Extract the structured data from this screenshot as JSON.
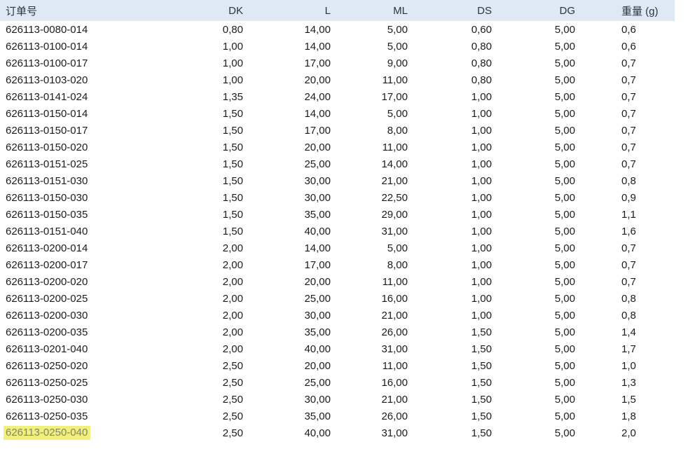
{
  "table": {
    "columns": [
      {
        "key": "order",
        "label": "订单号",
        "align": "left"
      },
      {
        "key": "dk",
        "label": "DK",
        "align": "right"
      },
      {
        "key": "l",
        "label": "L",
        "align": "right"
      },
      {
        "key": "ml",
        "label": "ML",
        "align": "right"
      },
      {
        "key": "ds",
        "label": "DS",
        "align": "right"
      },
      {
        "key": "dg",
        "label": "DG",
        "align": "right"
      },
      {
        "key": "weight",
        "label": "重量 (g)",
        "align": "left"
      }
    ],
    "rows": [
      {
        "order": "626113-0080-014",
        "dk": "0,80",
        "l": "14,00",
        "ml": "5,00",
        "ds": "0,60",
        "dg": "5,00",
        "weight": "0,6"
      },
      {
        "order": "626113-0100-014",
        "dk": "1,00",
        "l": "14,00",
        "ml": "5,00",
        "ds": "0,80",
        "dg": "5,00",
        "weight": "0,6"
      },
      {
        "order": "626113-0100-017",
        "dk": "1,00",
        "l": "17,00",
        "ml": "9,00",
        "ds": "0,80",
        "dg": "5,00",
        "weight": "0,7"
      },
      {
        "order": "626113-0103-020",
        "dk": "1,00",
        "l": "20,00",
        "ml": "11,00",
        "ds": "0,80",
        "dg": "5,00",
        "weight": "0,7"
      },
      {
        "order": "626113-0141-024",
        "dk": "1,35",
        "l": "24,00",
        "ml": "17,00",
        "ds": "1,00",
        "dg": "5,00",
        "weight": "0,7"
      },
      {
        "order": "626113-0150-014",
        "dk": "1,50",
        "l": "14,00",
        "ml": "5,00",
        "ds": "1,00",
        "dg": "5,00",
        "weight": "0,7"
      },
      {
        "order": "626113-0150-017",
        "dk": "1,50",
        "l": "17,00",
        "ml": "8,00",
        "ds": "1,00",
        "dg": "5,00",
        "weight": "0,7"
      },
      {
        "order": "626113-0150-020",
        "dk": "1,50",
        "l": "20,00",
        "ml": "11,00",
        "ds": "1,00",
        "dg": "5,00",
        "weight": "0,7"
      },
      {
        "order": "626113-0151-025",
        "dk": "1,50",
        "l": "25,00",
        "ml": "14,00",
        "ds": "1,00",
        "dg": "5,00",
        "weight": "0,7"
      },
      {
        "order": "626113-0151-030",
        "dk": "1,50",
        "l": "30,00",
        "ml": "21,00",
        "ds": "1,00",
        "dg": "5,00",
        "weight": "0,8"
      },
      {
        "order": "626113-0150-030",
        "dk": "1,50",
        "l": "30,00",
        "ml": "22,50",
        "ds": "1,00",
        "dg": "5,00",
        "weight": "0,9"
      },
      {
        "order": "626113-0150-035",
        "dk": "1,50",
        "l": "35,00",
        "ml": "29,00",
        "ds": "1,00",
        "dg": "5,00",
        "weight": "1,1"
      },
      {
        "order": "626113-0151-040",
        "dk": "1,50",
        "l": "40,00",
        "ml": "31,00",
        "ds": "1,00",
        "dg": "5,00",
        "weight": "1,6"
      },
      {
        "order": "626113-0200-014",
        "dk": "2,00",
        "l": "14,00",
        "ml": "5,00",
        "ds": "1,00",
        "dg": "5,00",
        "weight": "0,7"
      },
      {
        "order": "626113-0200-017",
        "dk": "2,00",
        "l": "17,00",
        "ml": "8,00",
        "ds": "1,00",
        "dg": "5,00",
        "weight": "0,7"
      },
      {
        "order": "626113-0200-020",
        "dk": "2,00",
        "l": "20,00",
        "ml": "11,00",
        "ds": "1,00",
        "dg": "5,00",
        "weight": "0,7"
      },
      {
        "order": "626113-0200-025",
        "dk": "2,00",
        "l": "25,00",
        "ml": "16,00",
        "ds": "1,00",
        "dg": "5,00",
        "weight": "0,8"
      },
      {
        "order": "626113-0200-030",
        "dk": "2,00",
        "l": "30,00",
        "ml": "21,00",
        "ds": "1,00",
        "dg": "5,00",
        "weight": "0,8"
      },
      {
        "order": "626113-0200-035",
        "dk": "2,00",
        "l": "35,00",
        "ml": "26,00",
        "ds": "1,50",
        "dg": "5,00",
        "weight": "1,4"
      },
      {
        "order": "626113-0201-040",
        "dk": "2,00",
        "l": "40,00",
        "ml": "31,00",
        "ds": "1,50",
        "dg": "5,00",
        "weight": "1,7"
      },
      {
        "order": "626113-0250-020",
        "dk": "2,50",
        "l": "20,00",
        "ml": "11,00",
        "ds": "1,50",
        "dg": "5,00",
        "weight": "1,0"
      },
      {
        "order": "626113-0250-025",
        "dk": "2,50",
        "l": "25,00",
        "ml": "16,00",
        "ds": "1,50",
        "dg": "5,00",
        "weight": "1,3"
      },
      {
        "order": "626113-0250-030",
        "dk": "2,50",
        "l": "30,00",
        "ml": "21,00",
        "ds": "1,50",
        "dg": "5,00",
        "weight": "1,5"
      },
      {
        "order": "626113-0250-035",
        "dk": "2,50",
        "l": "35,00",
        "ml": "26,00",
        "ds": "1,50",
        "dg": "5,00",
        "weight": "1,8"
      },
      {
        "order": "626113-0250-040",
        "dk": "2,50",
        "l": "40,00",
        "ml": "31,00",
        "ds": "1,50",
        "dg": "5,00",
        "weight": "2,0"
      }
    ],
    "highlighted_order": "626113-0250-040",
    "colors": {
      "header_bg": "#DFE9F6",
      "header_text": "#2B3440",
      "body_text": "#1C1C1C",
      "highlight_bg": "#F1F07C",
      "highlight_text": "#85856A"
    }
  }
}
